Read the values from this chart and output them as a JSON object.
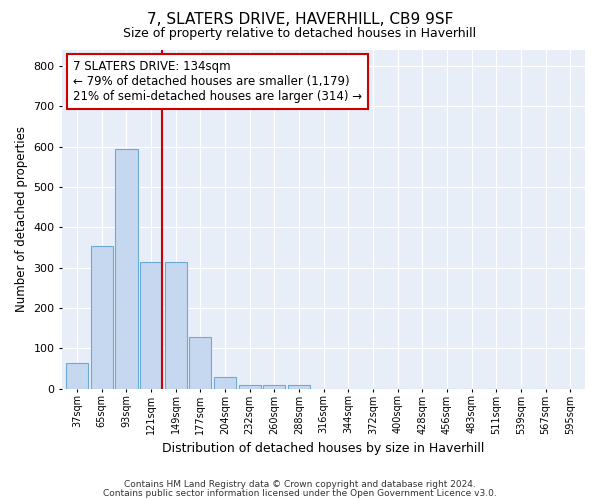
{
  "title1": "7, SLATERS DRIVE, HAVERHILL, CB9 9SF",
  "title2": "Size of property relative to detached houses in Haverhill",
  "xlabel": "Distribution of detached houses by size in Haverhill",
  "ylabel": "Number of detached properties",
  "bar_labels": [
    "37sqm",
    "65sqm",
    "93sqm",
    "121sqm",
    "149sqm",
    "177sqm",
    "204sqm",
    "232sqm",
    "260sqm",
    "288sqm",
    "316sqm",
    "344sqm",
    "372sqm",
    "400sqm",
    "428sqm",
    "456sqm",
    "483sqm",
    "511sqm",
    "539sqm",
    "567sqm",
    "595sqm"
  ],
  "bar_values": [
    65,
    355,
    595,
    315,
    315,
    128,
    28,
    10,
    10,
    10,
    0,
    0,
    0,
    0,
    0,
    0,
    0,
    0,
    0,
    0,
    0
  ],
  "bar_color": "#c5d8f0",
  "bar_edgecolor": "#6aaad4",
  "vline_color": "#cc0000",
  "annotation_line1": "7 SLATERS DRIVE: 134sqm",
  "annotation_line2": "← 79% of detached houses are smaller (1,179)",
  "annotation_line3": "21% of semi-detached houses are larger (314) →",
  "box_edgecolor": "#cc0000",
  "ylim": [
    0,
    840
  ],
  "yticks": [
    0,
    100,
    200,
    300,
    400,
    500,
    600,
    700,
    800
  ],
  "fig_bg": "#ffffff",
  "plot_bg": "#e8eef8",
  "grid_color": "#ffffff",
  "footer1": "Contains HM Land Registry data © Crown copyright and database right 2024.",
  "footer2": "Contains public sector information licensed under the Open Government Licence v3.0."
}
